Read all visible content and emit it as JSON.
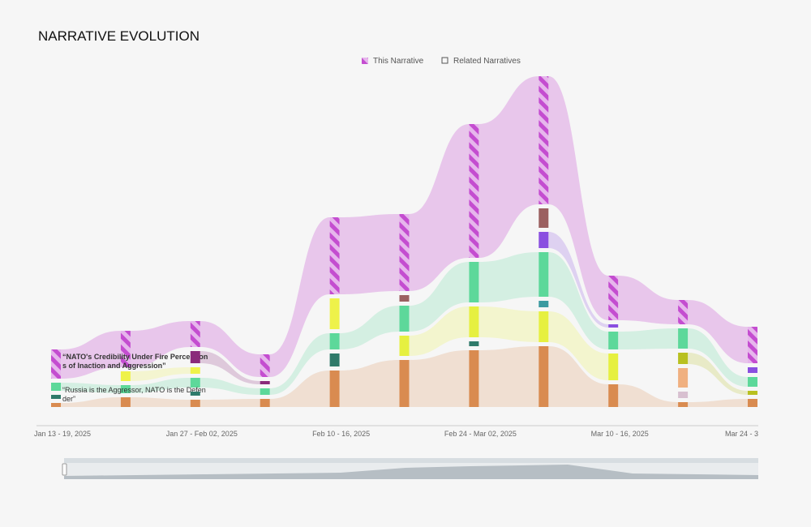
{
  "chart_data": {
    "type": "sankey",
    "title": "NARRATIVE EVOLUTION",
    "legend": [
      "This Narrative",
      "Related Narratives"
    ],
    "categories": [
      "Jan 13 - 19, 2025",
      null,
      "Jan 27 - Feb 02, 2025",
      null,
      "Feb 10 - 16, 2025",
      null,
      "Feb 24 - Mar 02, 2025",
      null,
      "Mar 10 - 16, 2025",
      null,
      "Mar 24 - 3"
    ],
    "series": [
      {
        "name": "“NATO's Credibility Under Fire Perceptions of Inaction and Aggression”",
        "color": "#c44dd0",
        "values": [
          36,
          45,
          32,
          28,
          95,
          95,
          165,
          158,
          55,
          30,
          45
        ]
      },
      {
        "color": "#9b6060",
        "values": [
          null,
          null,
          null,
          null,
          null,
          8,
          null,
          24,
          null,
          null,
          null
        ]
      },
      {
        "color": "#8a4fe0",
        "values": [
          null,
          null,
          null,
          null,
          null,
          null,
          null,
          20,
          4,
          null,
          7
        ]
      },
      {
        "color": "#8a2a7a",
        "values": [
          null,
          null,
          15,
          4,
          null,
          null,
          null,
          null,
          null,
          null,
          null
        ]
      },
      {
        "color": "#eef24a",
        "values": [
          null,
          12,
          8,
          null,
          38,
          null,
          null,
          null,
          null,
          null,
          null
        ]
      },
      {
        "name": "“Russia is the Aggressor, NATO is the Defender”",
        "color": "#5dd89a",
        "values": [
          10,
          10,
          12,
          8,
          20,
          32,
          50,
          55,
          22,
          25,
          12
        ]
      },
      {
        "color": "#3a9aa0",
        "values": [
          null,
          null,
          null,
          null,
          null,
          null,
          null,
          8,
          null,
          null,
          null
        ]
      },
      {
        "color": "#e6f040",
        "values": [
          null,
          null,
          null,
          null,
          null,
          25,
          38,
          38,
          33,
          null,
          null
        ]
      },
      {
        "color": "#2f7a6a",
        "values": [
          5,
          null,
          5,
          null,
          16,
          null,
          6,
          null,
          null,
          null,
          null
        ]
      },
      {
        "color": "#b8c020",
        "values": [
          null,
          null,
          null,
          null,
          null,
          null,
          null,
          null,
          null,
          14,
          5
        ]
      },
      {
        "color": "#f0b080",
        "values": [
          null,
          null,
          null,
          null,
          null,
          null,
          null,
          null,
          null,
          24,
          null
        ]
      },
      {
        "color": "#d8c0d0",
        "values": [
          null,
          null,
          null,
          null,
          null,
          null,
          null,
          null,
          null,
          8,
          null
        ]
      },
      {
        "color": "#d98b50",
        "values": [
          5,
          12,
          9,
          10,
          45,
          58,
          70,
          75,
          28,
          6,
          10
        ]
      }
    ]
  }
}
